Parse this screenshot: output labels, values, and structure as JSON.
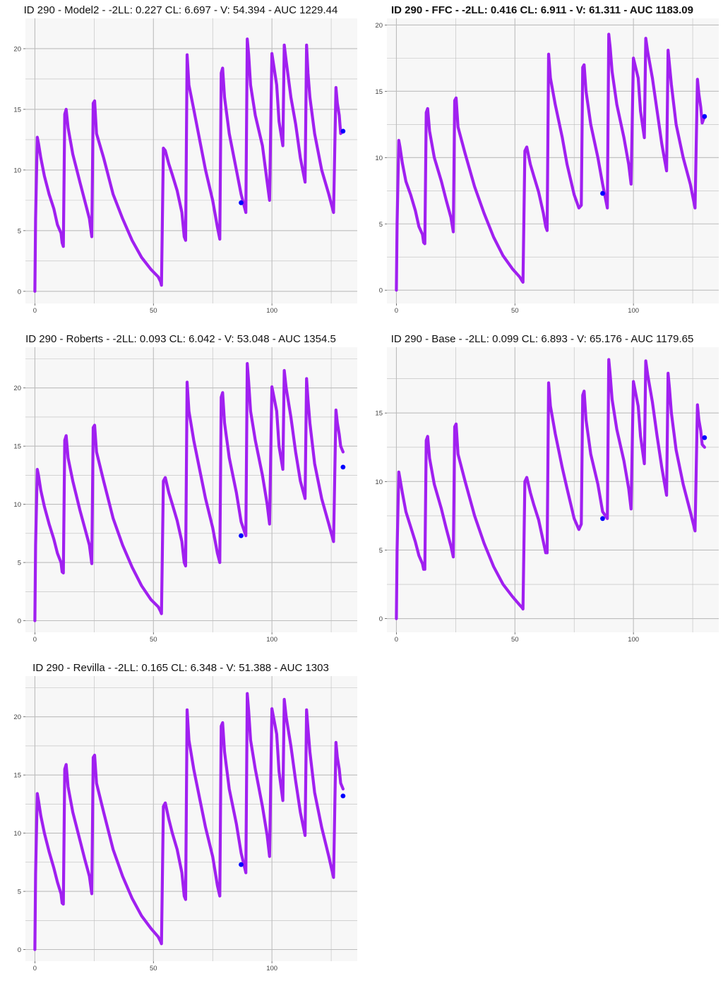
{
  "style": {
    "line_color": "#a020f0",
    "point_color": "#0000ff",
    "panel_background": "#f7f7f7",
    "grid_color": "#bdbdbd"
  },
  "chart_data": [
    {
      "type": "line",
      "title": "ID 290 - Model2 - -2LL: 0.227 CL: 6.697 - V: 54.394 - AUC 1229.44",
      "title_bold": false,
      "xlim": [
        -4,
        136
      ],
      "ylim": [
        -1,
        22.5
      ],
      "xticks": [
        0,
        50,
        100
      ],
      "yticks": [
        0,
        5,
        10,
        15,
        20
      ],
      "x": [
        0,
        0.3,
        1,
        1.5,
        2.5,
        4,
        6,
        8,
        9.5,
        11,
        11.5,
        12,
        12.6,
        13.2,
        14,
        16,
        19,
        21,
        23,
        24,
        24.6,
        25.2,
        26,
        29,
        33,
        37,
        41,
        45,
        49,
        52,
        53,
        53.4,
        54.2,
        55,
        56.5,
        58,
        60,
        62,
        63,
        63.6,
        64.2,
        65,
        67,
        70,
        72,
        75,
        77,
        78,
        78.6,
        79.2,
        80,
        82,
        85,
        87,
        89,
        89.6,
        90.2,
        91,
        93,
        96,
        98,
        99,
        100,
        102,
        103,
        104.6,
        105.2,
        106,
        108,
        110,
        112,
        114,
        114.6,
        115.2,
        116,
        118,
        121,
        124,
        126,
        127,
        127.6,
        128.4,
        129,
        130
      ],
      "y": [
        0,
        6,
        12.7,
        12.2,
        11,
        9.5,
        8,
        6.8,
        5.5,
        4.8,
        4,
        3.7,
        14.6,
        15,
        13.5,
        11.3,
        9,
        7.5,
        6,
        4.5,
        15.5,
        15.7,
        13,
        11,
        8,
        6,
        4.2,
        2.8,
        1.8,
        1.2,
        0.8,
        0.5,
        11.8,
        11.6,
        10.5,
        9.6,
        8.3,
        6.5,
        4.5,
        4.2,
        19.5,
        17,
        15,
        12,
        10,
        7.5,
        5.3,
        4.3,
        18,
        18.4,
        16,
        13,
        10,
        8,
        6.5,
        20.8,
        19.5,
        17,
        14.5,
        12,
        9,
        7.5,
        19.6,
        17,
        14,
        12,
        20.3,
        19,
        16,
        13.8,
        11,
        9,
        20.3,
        18,
        16,
        13,
        10,
        8,
        6.5,
        16.8,
        15.5,
        14.5,
        13,
        13.2
      ],
      "points_x": [
        87,
        130
      ],
      "points_y": [
        7.3,
        13.2
      ]
    },
    {
      "type": "line",
      "title": "ID 290 - FFC - -2LL: 0.416 CL: 6.911 - V: 61.311 - AUC 1183.09",
      "title_bold": true,
      "xlim": [
        -4,
        136
      ],
      "ylim": [
        -1,
        20.5
      ],
      "xticks": [
        0,
        50,
        100
      ],
      "yticks": [
        0,
        5,
        10,
        15,
        20
      ],
      "x": [
        0,
        0.3,
        1,
        1.5,
        2.5,
        4,
        6,
        8,
        9.5,
        11,
        11.5,
        12,
        12.6,
        13.2,
        14,
        16,
        19,
        21,
        23,
        24,
        24.6,
        25.2,
        26,
        29,
        33,
        37,
        41,
        45,
        49,
        52,
        53,
        53.4,
        54.2,
        55,
        56.5,
        58,
        60,
        62,
        63,
        63.6,
        64.2,
        65,
        67,
        70,
        72,
        75,
        77,
        78,
        78.6,
        79.2,
        80,
        82,
        85,
        87,
        89,
        89.6,
        90.2,
        91,
        93,
        96,
        98,
        99,
        100,
        102,
        103,
        104.6,
        105.2,
        106,
        108,
        110,
        112,
        114,
        114.6,
        115.2,
        116,
        118,
        121,
        124,
        126,
        127,
        127.6,
        128.4,
        129,
        130
      ],
      "y": [
        0,
        5,
        11.3,
        10.8,
        9.6,
        8.2,
        7.2,
        6,
        4.8,
        4.2,
        3.6,
        3.5,
        13.4,
        13.7,
        12,
        10,
        8.2,
        6.8,
        5.5,
        4.4,
        14.3,
        14.5,
        12.3,
        10.3,
        7.8,
        5.8,
        4,
        2.6,
        1.6,
        1,
        0.7,
        0.6,
        10.5,
        10.8,
        9.5,
        8.6,
        7.4,
        5.8,
        4.8,
        4.5,
        17.8,
        16,
        14,
        11.5,
        9.5,
        7.2,
        6.2,
        6.4,
        16.8,
        17,
        15,
        12.5,
        10,
        8,
        6.2,
        19.3,
        18.3,
        16.5,
        14,
        11.5,
        9.5,
        8,
        17.5,
        16,
        13.5,
        11.5,
        19,
        18,
        16,
        13.5,
        11,
        9,
        18.1,
        17,
        15.5,
        12.5,
        10,
        8,
        6.2,
        15.9,
        14.8,
        13.8,
        12.6,
        13.1
      ],
      "points_x": [
        87,
        130
      ],
      "points_y": [
        7.3,
        13.1
      ]
    },
    {
      "type": "line",
      "title": "ID 290 - Roberts - -2LL: 0.093 CL: 6.042 - V: 53.048 - AUC 1354.5",
      "title_bold": false,
      "xlim": [
        -4,
        136
      ],
      "ylim": [
        -1,
        23.5
      ],
      "xticks": [
        0,
        50,
        100
      ],
      "yticks": [
        0,
        5,
        10,
        15,
        20
      ],
      "x": [
        0,
        0.3,
        1,
        1.5,
        2.5,
        4,
        6,
        8,
        9.5,
        11,
        11.5,
        12,
        12.6,
        13.2,
        14,
        16,
        19,
        21,
        23,
        24,
        24.6,
        25.2,
        26,
        29,
        33,
        37,
        41,
        45,
        49,
        52,
        53,
        53.4,
        54.2,
        55,
        56.5,
        58,
        60,
        62,
        63,
        63.6,
        64.2,
        65,
        67,
        70,
        72,
        75,
        77,
        78,
        78.6,
        79.2,
        80,
        82,
        85,
        87,
        89,
        89.6,
        90.2,
        91,
        93,
        96,
        98,
        99,
        100,
        102,
        103,
        104.6,
        105.2,
        106,
        108,
        110,
        112,
        114,
        114.6,
        115.2,
        116,
        118,
        121,
        124,
        126,
        127,
        127.6,
        128.4,
        129,
        130
      ],
      "y": [
        0,
        6.5,
        13,
        12.5,
        11.2,
        9.8,
        8.3,
        7,
        5.8,
        5,
        4.2,
        4.1,
        15.5,
        15.9,
        14,
        12,
        9.5,
        8,
        6.5,
        4.9,
        16.6,
        16.8,
        14.5,
        12,
        8.8,
        6.5,
        4.6,
        3,
        1.8,
        1.2,
        0.8,
        0.6,
        12,
        12.3,
        11,
        10,
        8.6,
        6.8,
        5,
        4.7,
        20.5,
        18,
        15.5,
        12.5,
        10.5,
        8,
        5.8,
        5,
        19.2,
        19.6,
        17,
        14,
        11,
        8.5,
        7.3,
        22.1,
        20.5,
        18,
        15.5,
        12.5,
        10,
        8.3,
        20.1,
        18,
        15,
        13,
        21.5,
        20,
        17.5,
        14.5,
        12,
        10.5,
        20.8,
        19,
        17,
        13.5,
        10.5,
        8.3,
        6.8,
        18.1,
        17,
        16,
        15,
        14.5
      ],
      "points_x": [
        87,
        130
      ],
      "points_y": [
        7.3,
        13.2
      ]
    },
    {
      "type": "line",
      "title": "ID 290 - Base - -2LL: 0.099 CL: 6.893 - V: 65.176 - AUC 1179.65",
      "title_bold": false,
      "xlim": [
        -4,
        136
      ],
      "ylim": [
        -1,
        19.8
      ],
      "xticks": [
        0,
        50,
        100
      ],
      "yticks": [
        0,
        5,
        10,
        15
      ],
      "x": [
        0,
        0.3,
        1,
        1.5,
        2.5,
        4,
        6,
        8,
        9.5,
        11,
        11.5,
        12,
        12.6,
        13.2,
        14,
        16,
        19,
        21,
        23,
        24,
        24.6,
        25.2,
        26,
        29,
        33,
        37,
        41,
        45,
        49,
        52,
        53,
        53.4,
        54.2,
        55,
        56.5,
        58,
        60,
        62,
        63,
        63.6,
        64.2,
        65,
        67,
        70,
        72,
        75,
        77,
        78,
        78.6,
        79.2,
        80,
        82,
        85,
        87,
        89,
        89.6,
        90.2,
        91,
        93,
        96,
        98,
        99,
        100,
        102,
        103,
        104.6,
        105.2,
        106,
        108,
        110,
        112,
        114,
        114.6,
        115.2,
        116,
        118,
        121,
        124,
        126,
        127,
        127.6,
        128.4,
        129,
        130
      ],
      "y": [
        0,
        5,
        10.7,
        10.2,
        9.2,
        7.8,
        6.7,
        5.6,
        4.6,
        4,
        3.6,
        3.6,
        13,
        13.3,
        11.7,
        9.8,
        8,
        6.6,
        5.3,
        4.5,
        14,
        14.2,
        12,
        10,
        7.5,
        5.5,
        3.8,
        2.5,
        1.6,
        1,
        0.8,
        0.7,
        10,
        10.3,
        9.2,
        8.3,
        7.2,
        5.6,
        4.8,
        4.8,
        17.2,
        15.5,
        13.5,
        11,
        9.5,
        7.3,
        6.5,
        6.9,
        16.3,
        16.6,
        14.5,
        12,
        9.8,
        7.8,
        7.3,
        18.9,
        17.8,
        16,
        13.8,
        11.5,
        9.5,
        8,
        17.3,
        15.5,
        13.3,
        11.3,
        18.8,
        17.8,
        15.8,
        13.3,
        11,
        9,
        17.9,
        16.8,
        15,
        12.3,
        9.8,
        7.8,
        6.4,
        15.6,
        14.5,
        13.7,
        12.7,
        12.5
      ],
      "points_x": [
        87,
        130
      ],
      "points_y": [
        7.3,
        13.2
      ]
    },
    {
      "type": "line",
      "title": "ID 290 - Revilla - -2LL: 0.165 CL: 6.348 - V: 51.388 - AUC 1303",
      "title_bold": false,
      "xlim": [
        -4,
        136
      ],
      "ylim": [
        -1,
        23.5
      ],
      "xticks": [
        0,
        50,
        100
      ],
      "yticks": [
        0,
        5,
        10,
        15,
        20
      ],
      "x": [
        0,
        0.3,
        1,
        1.5,
        2.5,
        4,
        6,
        8,
        9.5,
        11,
        11.5,
        12,
        12.6,
        13.2,
        14,
        16,
        19,
        21,
        23,
        24,
        24.6,
        25.2,
        26,
        29,
        33,
        37,
        41,
        45,
        49,
        52,
        53,
        53.4,
        54.2,
        55,
        56.5,
        58,
        60,
        62,
        63,
        63.6,
        64.2,
        65,
        67,
        70,
        72,
        75,
        77,
        78,
        78.6,
        79.2,
        80,
        82,
        85,
        87,
        89,
        89.6,
        90.2,
        91,
        93,
        96,
        98,
        99,
        100,
        102,
        103,
        104.6,
        105.2,
        106,
        108,
        110,
        112,
        114,
        114.6,
        115.2,
        116,
        118,
        121,
        124,
        126,
        127,
        127.6,
        128.4,
        129,
        130
      ],
      "y": [
        0,
        6.5,
        13.4,
        12.8,
        11.5,
        10,
        8.4,
        7,
        5.8,
        4.8,
        4,
        3.9,
        15.5,
        15.9,
        14,
        11.8,
        9.4,
        7.8,
        6.3,
        4.8,
        16.5,
        16.7,
        14.3,
        11.8,
        8.6,
        6.3,
        4.4,
        2.9,
        1.8,
        1.1,
        0.7,
        0.5,
        12.3,
        12.6,
        11.2,
        10,
        8.6,
        6.6,
        4.6,
        4.3,
        20.6,
        18,
        15.5,
        12.5,
        10.5,
        8,
        5.5,
        4.6,
        19.2,
        19.5,
        17,
        13.8,
        10.8,
        8.3,
        6.6,
        22,
        20.5,
        18,
        15.5,
        12.3,
        9.8,
        8,
        20.7,
        18.5,
        15.3,
        12.8,
        21.5,
        20,
        17.5,
        14.5,
        11.8,
        9.8,
        20.6,
        19,
        17,
        13.5,
        10.5,
        8,
        6.2,
        17.8,
        16.5,
        15.5,
        14.3,
        13.8
      ],
      "points_x": [
        87,
        130
      ],
      "points_y": [
        7.3,
        13.2
      ]
    }
  ]
}
